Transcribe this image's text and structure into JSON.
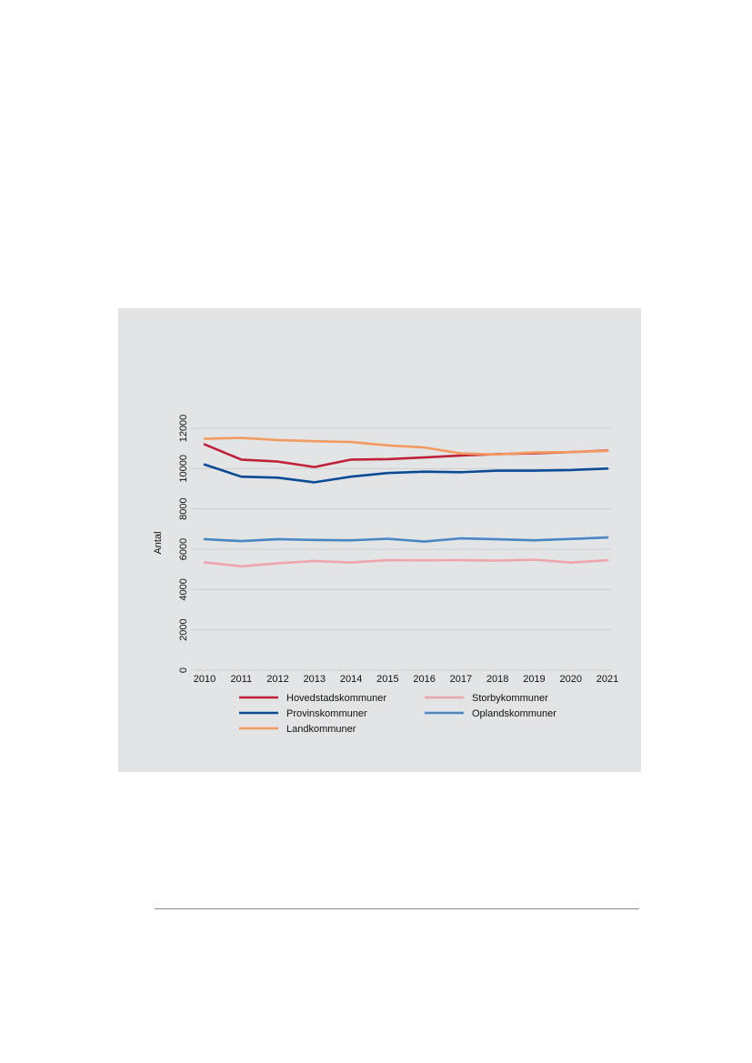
{
  "chart_data": {
    "type": "line",
    "title": "",
    "xlabel": "",
    "ylabel": "Antal",
    "ylim": [
      0,
      12000
    ],
    "yticks": [
      0,
      2000,
      4000,
      6000,
      8000,
      10000,
      12000
    ],
    "x": [
      2010,
      2011,
      2012,
      2013,
      2014,
      2015,
      2016,
      2017,
      2018,
      2019,
      2020,
      2021
    ],
    "grid": "horizontal",
    "legend_position": "bottom",
    "series": [
      {
        "name": "Hovedstadskommuner",
        "color": "#c0213a",
        "values": [
          11200,
          10450,
          10350,
          10080,
          10450,
          10470,
          10550,
          10650,
          10720,
          10760,
          10820,
          10900
        ]
      },
      {
        "name": "Storbykommuner",
        "color": "#eda5ae",
        "values": [
          5350,
          5150,
          5300,
          5420,
          5340,
          5460,
          5450,
          5460,
          5430,
          5480,
          5340,
          5450
        ]
      },
      {
        "name": "Provinskommuner",
        "color": "#0b4a94",
        "values": [
          10200,
          9600,
          9550,
          9320,
          9600,
          9780,
          9850,
          9820,
          9900,
          9900,
          9930,
          10000
        ]
      },
      {
        "name": "Oplandskommuner",
        "color": "#4a86c3",
        "values": [
          6500,
          6400,
          6500,
          6460,
          6440,
          6520,
          6380,
          6540,
          6490,
          6440,
          6510,
          6580
        ]
      },
      {
        "name": "Landkommuner",
        "color": "#f39a61",
        "values": [
          11480,
          11520,
          11420,
          11360,
          11320,
          11150,
          11050,
          10750,
          10700,
          10800,
          10820,
          10880
        ]
      }
    ]
  }
}
